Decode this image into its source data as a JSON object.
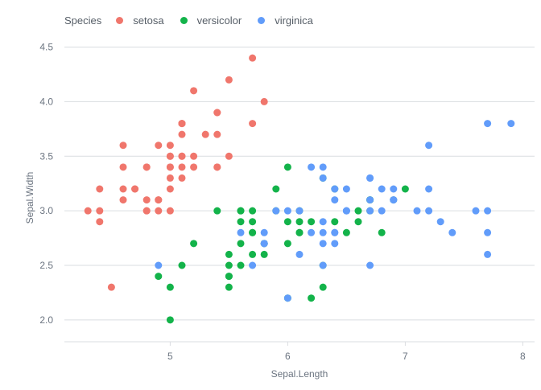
{
  "chart_data": {
    "type": "scatter",
    "title": "",
    "xlabel": "Sepal.Length",
    "ylabel": "Sepal.Width",
    "xlim": [
      4.1,
      8.1
    ],
    "ylim": [
      1.8,
      4.6
    ],
    "xticks": [
      5,
      6,
      7,
      8
    ],
    "yticks": [
      2.0,
      2.5,
      3.0,
      3.5,
      4.0,
      4.5
    ],
    "xtick_labels": [
      "5",
      "6",
      "7",
      "8"
    ],
    "ytick_labels": [
      "2.0",
      "2.5",
      "3.0",
      "3.5",
      "4.0",
      "4.5"
    ],
    "legend_title": "Species",
    "legend_position": "top-left",
    "grid": "horizontal",
    "series": [
      {
        "name": "setosa",
        "color": "#f0766c",
        "points": [
          [
            5.1,
            3.5
          ],
          [
            4.9,
            3.0
          ],
          [
            4.7,
            3.2
          ],
          [
            4.6,
            3.1
          ],
          [
            5.0,
            3.6
          ],
          [
            5.4,
            3.9
          ],
          [
            4.6,
            3.4
          ],
          [
            5.0,
            3.4
          ],
          [
            4.4,
            2.9
          ],
          [
            4.9,
            3.1
          ],
          [
            5.4,
            3.7
          ],
          [
            4.8,
            3.4
          ],
          [
            4.8,
            3.0
          ],
          [
            4.3,
            3.0
          ],
          [
            5.8,
            4.0
          ],
          [
            5.7,
            4.4
          ],
          [
            5.4,
            3.9
          ],
          [
            5.1,
            3.5
          ],
          [
            5.7,
            3.8
          ],
          [
            5.1,
            3.8
          ],
          [
            5.4,
            3.4
          ],
          [
            5.1,
            3.7
          ],
          [
            4.6,
            3.6
          ],
          [
            5.1,
            3.3
          ],
          [
            4.8,
            3.4
          ],
          [
            5.0,
            3.0
          ],
          [
            5.0,
            3.4
          ],
          [
            5.2,
            3.5
          ],
          [
            5.2,
            3.4
          ],
          [
            4.7,
            3.2
          ],
          [
            4.8,
            3.1
          ],
          [
            5.4,
            3.4
          ],
          [
            5.2,
            4.1
          ],
          [
            5.5,
            4.2
          ],
          [
            4.9,
            3.1
          ],
          [
            5.0,
            3.2
          ],
          [
            5.5,
            3.5
          ],
          [
            4.9,
            3.6
          ],
          [
            4.4,
            3.0
          ],
          [
            5.1,
            3.4
          ],
          [
            5.0,
            3.5
          ],
          [
            4.5,
            2.3
          ],
          [
            4.4,
            3.2
          ],
          [
            5.0,
            3.5
          ],
          [
            5.1,
            3.8
          ],
          [
            4.8,
            3.0
          ],
          [
            5.1,
            3.8
          ],
          [
            4.6,
            3.2
          ],
          [
            5.3,
            3.7
          ],
          [
            5.0,
            3.3
          ]
        ]
      },
      {
        "name": "versicolor",
        "color": "#13b34a",
        "points": [
          [
            7.0,
            3.2
          ],
          [
            6.4,
            3.2
          ],
          [
            6.9,
            3.1
          ],
          [
            5.5,
            2.3
          ],
          [
            6.5,
            2.8
          ],
          [
            5.7,
            2.8
          ],
          [
            6.3,
            3.3
          ],
          [
            4.9,
            2.4
          ],
          [
            6.6,
            2.9
          ],
          [
            5.2,
            2.7
          ],
          [
            5.0,
            2.0
          ],
          [
            5.9,
            3.0
          ],
          [
            6.0,
            2.2
          ],
          [
            6.1,
            2.9
          ],
          [
            5.6,
            2.9
          ],
          [
            6.7,
            3.1
          ],
          [
            5.6,
            3.0
          ],
          [
            5.8,
            2.7
          ],
          [
            6.2,
            2.2
          ],
          [
            5.6,
            2.5
          ],
          [
            5.9,
            3.2
          ],
          [
            6.1,
            2.8
          ],
          [
            6.3,
            2.5
          ],
          [
            6.1,
            2.8
          ],
          [
            6.4,
            2.9
          ],
          [
            6.6,
            3.0
          ],
          [
            6.8,
            2.8
          ],
          [
            6.7,
            3.0
          ],
          [
            6.0,
            2.9
          ],
          [
            5.7,
            2.6
          ],
          [
            5.5,
            2.4
          ],
          [
            5.5,
            2.4
          ],
          [
            5.8,
            2.7
          ],
          [
            6.0,
            2.7
          ],
          [
            5.4,
            3.0
          ],
          [
            6.0,
            3.4
          ],
          [
            6.7,
            3.1
          ],
          [
            6.3,
            2.3
          ],
          [
            5.6,
            3.0
          ],
          [
            5.5,
            2.5
          ],
          [
            5.5,
            2.6
          ],
          [
            6.1,
            3.0
          ],
          [
            5.8,
            2.6
          ],
          [
            5.0,
            2.3
          ],
          [
            5.6,
            2.7
          ],
          [
            5.7,
            3.0
          ],
          [
            5.7,
            2.9
          ],
          [
            6.2,
            2.9
          ],
          [
            5.1,
            2.5
          ],
          [
            5.7,
            2.8
          ]
        ]
      },
      {
        "name": "virginica",
        "color": "#619cfa",
        "points": [
          [
            6.3,
            3.3
          ],
          [
            5.8,
            2.7
          ],
          [
            7.1,
            3.0
          ],
          [
            6.3,
            2.9
          ],
          [
            6.5,
            3.0
          ],
          [
            7.6,
            3.0
          ],
          [
            4.9,
            2.5
          ],
          [
            7.3,
            2.9
          ],
          [
            6.7,
            2.5
          ],
          [
            7.2,
            3.6
          ],
          [
            6.5,
            3.2
          ],
          [
            6.4,
            2.7
          ],
          [
            6.8,
            3.0
          ],
          [
            5.7,
            2.5
          ],
          [
            5.8,
            2.8
          ],
          [
            6.4,
            3.2
          ],
          [
            6.5,
            3.0
          ],
          [
            7.7,
            3.8
          ],
          [
            7.7,
            2.6
          ],
          [
            6.0,
            2.2
          ],
          [
            6.9,
            3.2
          ],
          [
            5.6,
            2.8
          ],
          [
            7.7,
            2.8
          ],
          [
            6.3,
            2.7
          ],
          [
            6.7,
            3.3
          ],
          [
            7.2,
            3.2
          ],
          [
            6.2,
            2.8
          ],
          [
            6.1,
            3.0
          ],
          [
            6.4,
            2.8
          ],
          [
            7.2,
            3.0
          ],
          [
            7.4,
            2.8
          ],
          [
            7.9,
            3.8
          ],
          [
            6.4,
            2.8
          ],
          [
            6.3,
            2.8
          ],
          [
            6.1,
            2.6
          ],
          [
            7.7,
            3.0
          ],
          [
            6.3,
            3.4
          ],
          [
            6.4,
            3.1
          ],
          [
            6.0,
            3.0
          ],
          [
            6.9,
            3.1
          ],
          [
            6.7,
            3.1
          ],
          [
            6.9,
            3.1
          ],
          [
            5.8,
            2.7
          ],
          [
            6.8,
            3.2
          ],
          [
            6.7,
            3.3
          ],
          [
            6.7,
            3.0
          ],
          [
            6.3,
            2.5
          ],
          [
            6.5,
            3.0
          ],
          [
            6.2,
            3.4
          ],
          [
            5.9,
            3.0
          ]
        ]
      }
    ]
  }
}
